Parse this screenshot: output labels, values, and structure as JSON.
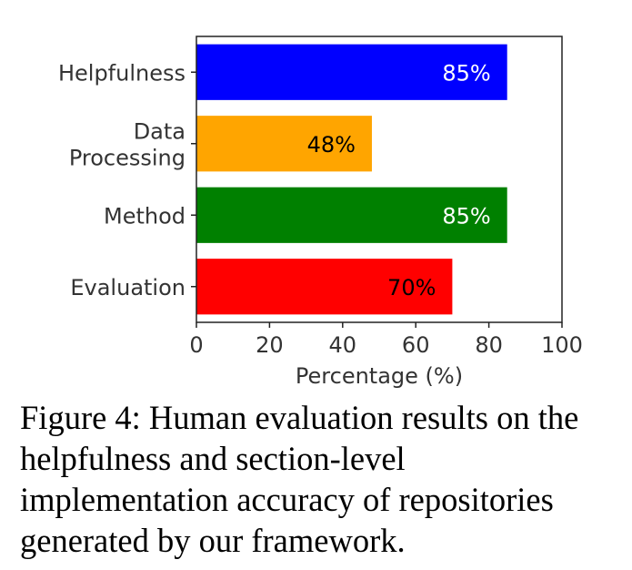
{
  "chart_data": {
    "type": "bar",
    "orientation": "horizontal",
    "categories": [
      [
        "Helpfulness"
      ],
      [
        "Data",
        "Processing"
      ],
      [
        "Method"
      ],
      [
        "Evaluation"
      ]
    ],
    "values": [
      85,
      48,
      85,
      70
    ],
    "value_labels": [
      "85%",
      "48%",
      "85%",
      "70%"
    ],
    "bar_colors": [
      "#0000ff",
      "#ffa500",
      "#008000",
      "#ff0000"
    ],
    "value_label_colors": [
      "#ffffff",
      "#000000",
      "#ffffff",
      "#000000"
    ],
    "xlabel": "Percentage (%)",
    "ylabel": "",
    "xlim": [
      0,
      100
    ],
    "xticks": [
      0,
      20,
      40,
      60,
      80,
      100
    ],
    "grid": false,
    "legend": "none"
  },
  "caption": {
    "text": "Figure 4: Human evaluation results on the helpfulness and section-level implementation accuracy of repositories generated by our framework."
  }
}
